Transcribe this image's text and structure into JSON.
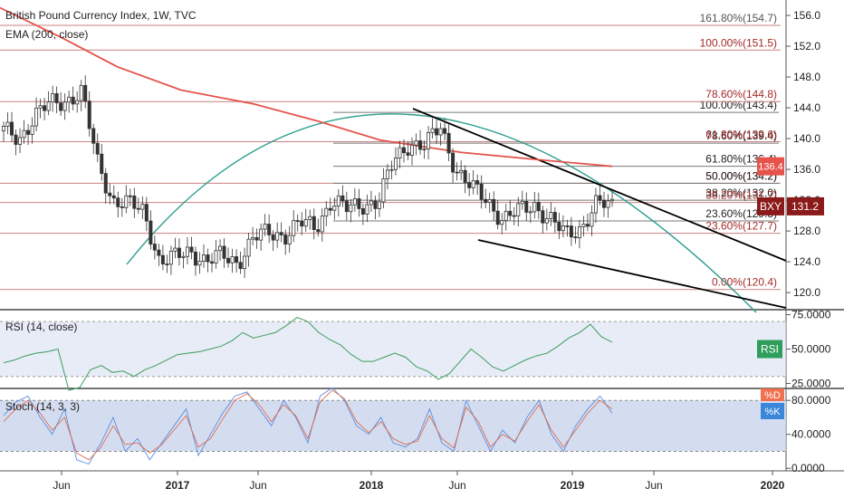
{
  "header": {
    "title": "British Pound Currency Index, 1W, TVC",
    "ema_label": "EMA (200, close)"
  },
  "rsi_panel": {
    "label": "RSI (14, close)",
    "badge": "RSI"
  },
  "stoch_panel": {
    "label": "Stoch (14, 3, 3)",
    "badge_d": "%D",
    "badge_k": "%K"
  },
  "price_badges": {
    "symbol": "BXY",
    "last": "131.2",
    "ema_text": "136.4"
  },
  "chart_data": [
    {
      "type": "candlestick",
      "title": "British Pound Currency Index, 1W, TVC",
      "y_ticks": [
        "156.0",
        "152.0",
        "148.0",
        "144.0",
        "140.0",
        "136.0",
        "132.0",
        "128.0",
        "124.0",
        "120.0"
      ],
      "ylim": [
        117.9,
        158.0
      ],
      "x_ticks": [
        "Jun",
        "2017",
        "Jun",
        "2018",
        "Jun",
        "2019",
        "Jun",
        "2020"
      ],
      "fib_levels_upper": [
        {
          "label": "161.80%(154.7)",
          "value": 154.7,
          "color": "#555555"
        },
        {
          "label": "100.00%(151.5)",
          "value": 151.5,
          "color": "#a52a2a"
        },
        {
          "label": "100.00%(143.4)",
          "value": 143.4,
          "color": "#222222"
        },
        {
          "label": "78.60%(144.8)",
          "value": 144.8,
          "color": "#a52a2a"
        },
        {
          "label": "78.60%(139.4)",
          "value": 139.4,
          "color": "#222222"
        },
        {
          "label": "61.80%(139.6)",
          "value": 139.6,
          "color": "#a52a2a"
        },
        {
          "label": "61.80%(136.4)",
          "value": 136.4,
          "color": "#222222"
        },
        {
          "label": "50.00%(134.2)",
          "value": 134.2,
          "color": "#a52a2a"
        },
        {
          "label": "50.00%(134.2)",
          "value": 134.2,
          "color": "#222222"
        },
        {
          "label": "38.20%(132.0)",
          "value": 132.0,
          "color": "#222222"
        },
        {
          "label": "38.20%(131.7)",
          "value": 131.7,
          "color": "#a52a2a"
        },
        {
          "label": "23.60%(129.3)",
          "value": 129.3,
          "color": "#222222"
        },
        {
          "label": "23.60%(127.7)",
          "value": 127.7,
          "color": "#a52a2a"
        },
        {
          "label": "0.00%(120.4)",
          "value": 120.4,
          "color": "#a52a2a"
        }
      ],
      "ema200": [
        {
          "x": "2016-01",
          "y": 157.0
        },
        {
          "x": "2016-06",
          "y": 153.0
        },
        {
          "x": "2016-10",
          "y": 149.3
        },
        {
          "x": "2017-02",
          "y": 146.3
        },
        {
          "x": "2017-06",
          "y": 144.5
        },
        {
          "x": "2017-10",
          "y": 142.3
        },
        {
          "x": "2018-02",
          "y": 139.8
        },
        {
          "x": "2018-06",
          "y": 138.2
        },
        {
          "x": "2018-10",
          "y": 137.2
        },
        {
          "x": "2019-03",
          "y": 136.4
        }
      ],
      "close_weekly": [
        {
          "x": "2016-01",
          "y": 141.0
        },
        {
          "x": "2016-02",
          "y": 140.0
        },
        {
          "x": "2016-03",
          "y": 143.0
        },
        {
          "x": "2016-04",
          "y": 144.5
        },
        {
          "x": "2016-05",
          "y": 145.0
        },
        {
          "x": "2016-06",
          "y": 146.0
        },
        {
          "x": "2016-06b",
          "y": 137.0
        },
        {
          "x": "2016-07",
          "y": 132.0
        },
        {
          "x": "2016-08",
          "y": 131.5
        },
        {
          "x": "2016-09",
          "y": 130.5
        },
        {
          "x": "2016-10",
          "y": 124.0
        },
        {
          "x": "2016-11",
          "y": 124.5
        },
        {
          "x": "2016-12",
          "y": 125.5
        },
        {
          "x": "2017-01",
          "y": 124.0
        },
        {
          "x": "2017-02",
          "y": 124.8
        },
        {
          "x": "2017-03",
          "y": 124.0
        },
        {
          "x": "2017-04",
          "y": 127.0
        },
        {
          "x": "2017-05",
          "y": 127.8
        },
        {
          "x": "2017-06",
          "y": 127.5
        },
        {
          "x": "2017-07",
          "y": 129.0
        },
        {
          "x": "2017-08",
          "y": 128.5
        },
        {
          "x": "2017-09",
          "y": 132.0
        },
        {
          "x": "2017-10",
          "y": 130.8
        },
        {
          "x": "2017-11",
          "y": 131.5
        },
        {
          "x": "2017-12",
          "y": 131.8
        },
        {
          "x": "2018-01",
          "y": 137.0
        },
        {
          "x": "2018-02",
          "y": 139.5
        },
        {
          "x": "2018-03",
          "y": 139.0
        },
        {
          "x": "2018-04",
          "y": 141.5
        },
        {
          "x": "2018-05",
          "y": 136.0
        },
        {
          "x": "2018-06",
          "y": 133.5
        },
        {
          "x": "2018-07",
          "y": 132.0
        },
        {
          "x": "2018-08",
          "y": 129.5
        },
        {
          "x": "2018-09",
          "y": 130.5
        },
        {
          "x": "2018-10",
          "y": 131.5
        },
        {
          "x": "2018-11",
          "y": 129.5
        },
        {
          "x": "2018-12",
          "y": 127.5
        },
        {
          "x": "2019-01",
          "y": 128.5
        },
        {
          "x": "2019-02",
          "y": 131.5
        },
        {
          "x": "2019-03",
          "y": 131.2
        }
      ]
    },
    {
      "type": "line",
      "title": "RSI (14, close)",
      "y_ticks": [
        "75.0000",
        "50.0000",
        "25.0000"
      ],
      "ylim": [
        22,
        78
      ],
      "band": [
        30,
        70
      ],
      "series": [
        {
          "name": "RSI",
          "values": [
            40,
            42,
            45,
            47,
            48,
            50,
            20,
            22,
            35,
            38,
            33,
            34,
            30,
            35,
            38,
            42,
            46,
            47,
            48,
            50,
            52,
            56,
            62,
            58,
            60,
            62,
            67,
            73,
            70,
            62,
            57,
            53,
            46,
            41,
            41,
            44,
            47,
            44,
            37,
            34,
            28,
            32,
            41,
            50,
            44,
            37,
            34,
            38,
            42,
            45,
            47,
            52,
            58,
            62,
            68,
            59,
            55
          ]
        }
      ]
    },
    {
      "type": "line",
      "title": "Stoch (14, 3, 3)",
      "y_ticks": [
        "80.0000",
        "40.0000",
        "0.0000"
      ],
      "ylim": [
        -3,
        93
      ],
      "band": [
        20,
        80
      ],
      "series": [
        {
          "name": "%K",
          "values": [
            62,
            78,
            85,
            60,
            40,
            70,
            10,
            5,
            30,
            60,
            20,
            35,
            10,
            30,
            50,
            70,
            15,
            40,
            65,
            85,
            90,
            70,
            50,
            80,
            60,
            30,
            85,
            95,
            80,
            50,
            40,
            60,
            30,
            25,
            35,
            70,
            30,
            20,
            80,
            50,
            20,
            45,
            30,
            60,
            80,
            40,
            20,
            50,
            70,
            85,
            65
          ]
        },
        {
          "name": "%D",
          "values": [
            55,
            70,
            80,
            65,
            45,
            60,
            18,
            10,
            25,
            50,
            28,
            30,
            18,
            28,
            45,
            62,
            25,
            35,
            58,
            80,
            88,
            75,
            55,
            75,
            62,
            35,
            78,
            92,
            82,
            55,
            42,
            55,
            35,
            28,
            32,
            62,
            35,
            24,
            72,
            55,
            25,
            40,
            32,
            55,
            75,
            45,
            25,
            45,
            65,
            80,
            70
          ]
        }
      ]
    }
  ]
}
